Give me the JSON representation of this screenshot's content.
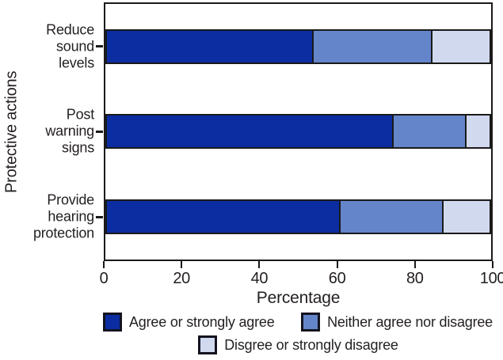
{
  "chart_data": {
    "type": "bar",
    "orientation": "horizontal",
    "stacked": true,
    "categories": [
      "Reduce\nsound\nlevels",
      "Post\nwarning\nsigns",
      "Provide\nhearing\nprotection"
    ],
    "series": [
      {
        "name": "Agree or strongly agree",
        "color": "#0b2da1",
        "values": [
          54,
          75,
          61
        ]
      },
      {
        "name": "Neither agree nor disagree",
        "color": "#6485c9",
        "values": [
          31,
          19,
          27
        ]
      },
      {
        "name": "Disgree or strongly disagree",
        "color": "#d0d9ee",
        "values": [
          15,
          6,
          12
        ]
      }
    ],
    "xlabel": "Percentage",
    "ylabel": "Protective actions",
    "xlim": [
      0,
      100
    ],
    "xticks": [
      0,
      20,
      40,
      60,
      80,
      100
    ],
    "grid": false,
    "legend_position": "bottom",
    "axis_color": "#1a1a1a",
    "text_color": "#231f20",
    "background": "#ffffff"
  }
}
